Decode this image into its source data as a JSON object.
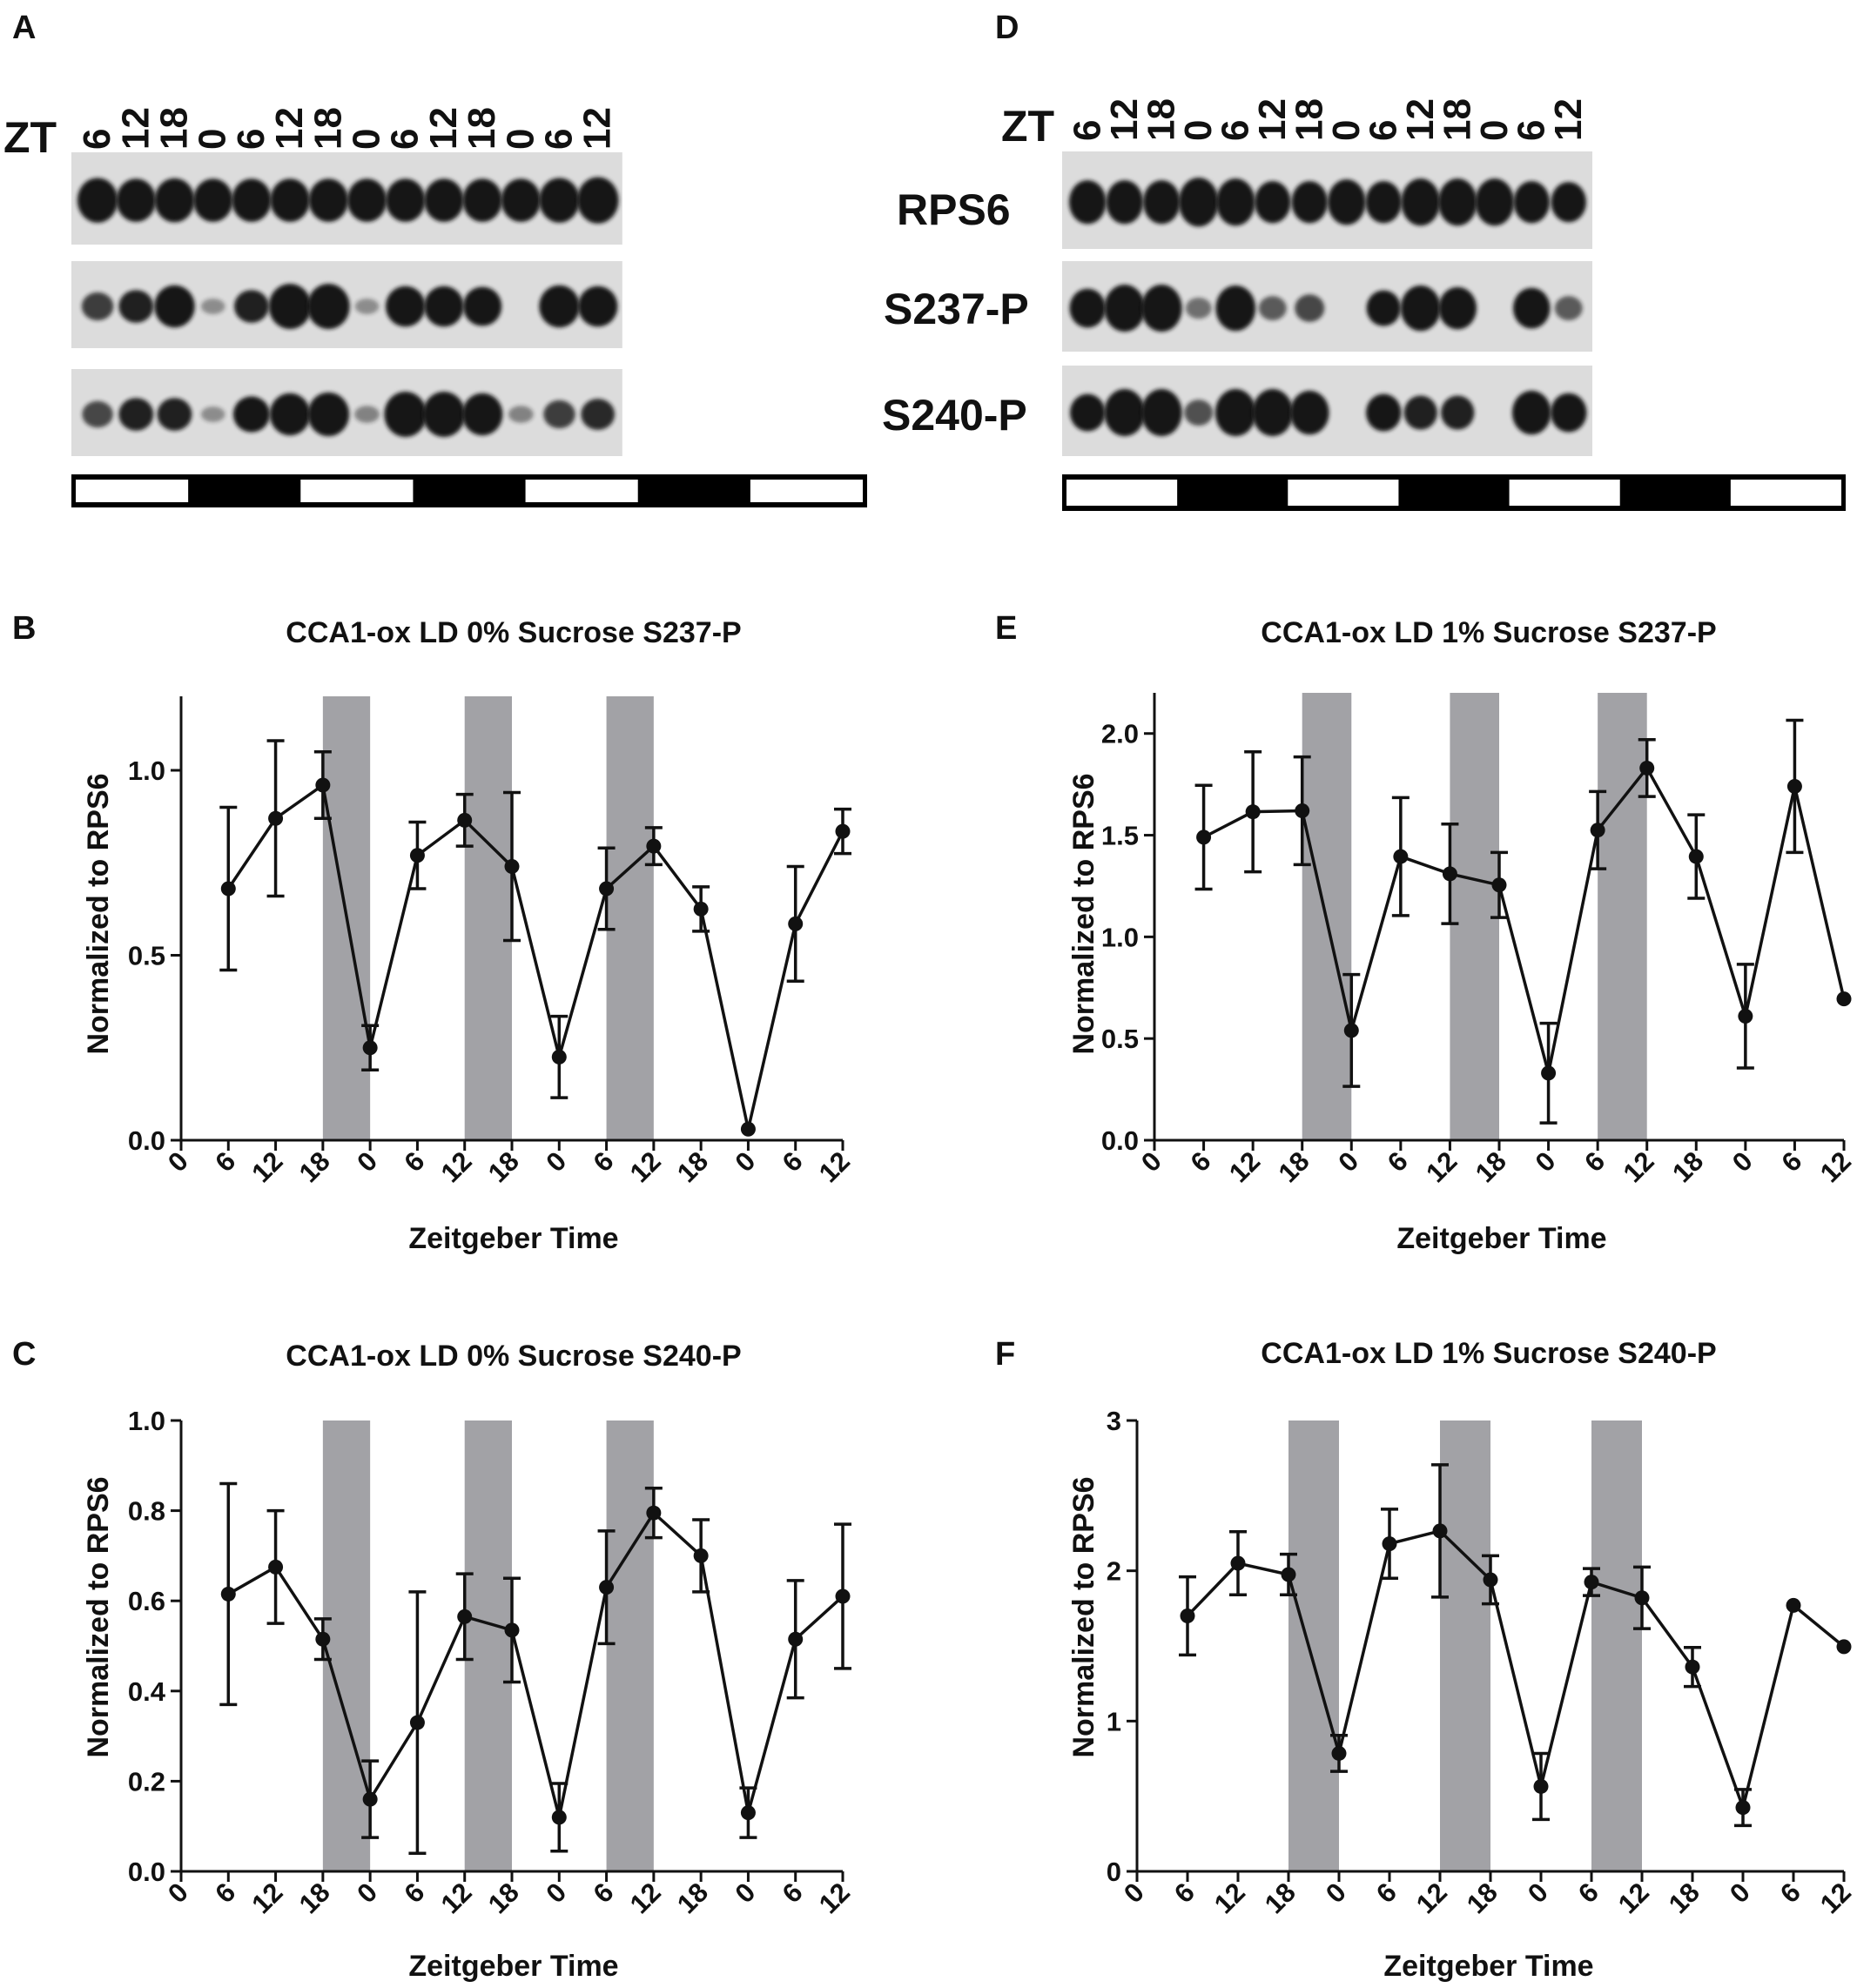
{
  "blots": [
    {
      "panel": "A",
      "zt_prefix": "ZT",
      "lanes": [
        "6",
        "12",
        "18",
        "0",
        "6",
        "12",
        "18",
        "0",
        "6",
        "12",
        "18",
        "0",
        "6",
        "12"
      ],
      "bands": [
        {
          "label": "RPS6",
          "intensity": [
            0.9,
            0.85,
            0.88,
            0.85,
            0.85,
            0.85,
            0.85,
            0.85,
            0.85,
            0.85,
            0.85,
            0.85,
            0.9,
            0.95
          ]
        },
        {
          "label": "S237-P",
          "intensity": [
            0.45,
            0.6,
            0.9,
            0.05,
            0.6,
            1.0,
            1.0,
            0.05,
            0.85,
            0.85,
            0.8,
            0.0,
            0.9,
            0.85
          ]
        },
        {
          "label": "S240-P",
          "intensity": [
            0.4,
            0.6,
            0.6,
            0.05,
            0.7,
            0.9,
            0.95,
            0.1,
            1.0,
            1.0,
            0.9,
            0.1,
            0.45,
            0.55
          ]
        }
      ],
      "light_dark": [
        "light",
        "dark",
        "light",
        "dark",
        "light",
        "dark",
        "light"
      ]
    },
    {
      "panel": "D",
      "zt_prefix": "ZT",
      "lanes": [
        "6",
        "12",
        "18",
        "0",
        "6",
        "12",
        "18",
        "0",
        "6",
        "12",
        "18",
        "0",
        "6",
        "12"
      ],
      "bands": [
        {
          "label": "RPS6",
          "intensity": [
            0.8,
            0.8,
            0.8,
            0.95,
            0.9,
            0.75,
            0.75,
            0.85,
            0.75,
            0.9,
            0.9,
            0.9,
            0.75,
            0.7
          ]
        },
        {
          "label": "S237-P",
          "intensity": [
            0.75,
            1.0,
            1.0,
            0.2,
            0.95,
            0.3,
            0.4,
            0.0,
            0.65,
            0.95,
            0.85,
            0.0,
            0.8,
            0.3
          ]
        },
        {
          "label": "S240-P",
          "intensity": [
            0.7,
            1.0,
            1.0,
            0.35,
            1.0,
            1.0,
            0.9,
            0.0,
            0.7,
            0.6,
            0.6,
            0.0,
            0.9,
            0.75
          ]
        }
      ],
      "light_dark": [
        "light",
        "dark",
        "light",
        "dark",
        "light",
        "dark",
        "light"
      ]
    }
  ],
  "chart_data": [
    {
      "panel": "B",
      "type": "line",
      "title": "CCA1-ox LD 0% Sucrose S237-P",
      "xlabel": "Zeitgeber Time",
      "ylabel": "Normalized to RPS6",
      "x_ticks": [
        "0",
        "6",
        "12",
        "18",
        "0",
        "6",
        "12",
        "18",
        "0",
        "6",
        "12",
        "18",
        "0",
        "6",
        "12"
      ],
      "ylim": [
        0,
        1.2
      ],
      "y_ticks": [
        "0.0",
        "0.5",
        "1.0"
      ],
      "y_tick_values": [
        0,
        0.5,
        1.0
      ],
      "shaded_x": [
        [
          3,
          4
        ],
        [
          6,
          7
        ],
        [
          9,
          10
        ]
      ],
      "points": [
        {
          "x": 1,
          "y": 0.68,
          "err": 0.22
        },
        {
          "x": 2,
          "y": 0.87,
          "err": 0.21
        },
        {
          "x": 3,
          "y": 0.96,
          "err": 0.09
        },
        {
          "x": 4,
          "y": 0.25,
          "err": 0.06
        },
        {
          "x": 5,
          "y": 0.77,
          "err": 0.09
        },
        {
          "x": 6,
          "y": 0.865,
          "err": 0.07
        },
        {
          "x": 7,
          "y": 0.74,
          "err": 0.2
        },
        {
          "x": 8,
          "y": 0.225,
          "err": 0.11
        },
        {
          "x": 9,
          "y": 0.68,
          "err": 0.11
        },
        {
          "x": 10,
          "y": 0.795,
          "err": 0.05
        },
        {
          "x": 11,
          "y": 0.625,
          "err": 0.06
        },
        {
          "x": 12,
          "y": 0.03,
          "err": 0.0
        },
        {
          "x": 13,
          "y": 0.585,
          "err": 0.155
        },
        {
          "x": 14,
          "y": 0.835,
          "err": 0.06
        }
      ]
    },
    {
      "panel": "C",
      "type": "line",
      "title": "CCA1-ox LD 0% Sucrose S240-P",
      "xlabel": "Zeitgeber Time",
      "ylabel": "Normalized to RPS6",
      "x_ticks": [
        "0",
        "6",
        "12",
        "18",
        "0",
        "6",
        "12",
        "18",
        "0",
        "6",
        "12",
        "18",
        "0",
        "6",
        "12"
      ],
      "ylim": [
        0,
        1.0
      ],
      "y_ticks": [
        "0.0",
        "0.2",
        "0.4",
        "0.6",
        "0.8",
        "1.0"
      ],
      "y_tick_values": [
        0,
        0.2,
        0.4,
        0.6,
        0.8,
        1.0
      ],
      "shaded_x": [
        [
          3,
          4
        ],
        [
          6,
          7
        ],
        [
          9,
          10
        ]
      ],
      "points": [
        {
          "x": 1,
          "y": 0.615,
          "err": 0.245
        },
        {
          "x": 2,
          "y": 0.675,
          "err": 0.125
        },
        {
          "x": 3,
          "y": 0.515,
          "err": 0.045
        },
        {
          "x": 4,
          "y": 0.16,
          "err": 0.085
        },
        {
          "x": 5,
          "y": 0.33,
          "err": 0.29
        },
        {
          "x": 6,
          "y": 0.565,
          "err": 0.095
        },
        {
          "x": 7,
          "y": 0.535,
          "err": 0.115
        },
        {
          "x": 8,
          "y": 0.12,
          "err": 0.075
        },
        {
          "x": 9,
          "y": 0.63,
          "err": 0.125
        },
        {
          "x": 10,
          "y": 0.795,
          "err": 0.055
        },
        {
          "x": 11,
          "y": 0.7,
          "err": 0.08
        },
        {
          "x": 12,
          "y": 0.13,
          "err": 0.055
        },
        {
          "x": 13,
          "y": 0.515,
          "err": 0.13
        },
        {
          "x": 14,
          "y": 0.61,
          "err": 0.16
        }
      ]
    },
    {
      "panel": "E",
      "type": "line",
      "title": "CCA1-ox LD 1% Sucrose S237-P",
      "xlabel": "Zeitgeber Time",
      "ylabel": "Normalized to RPS6",
      "x_ticks": [
        "0",
        "6",
        "12",
        "18",
        "0",
        "6",
        "12",
        "18",
        "0",
        "6",
        "12",
        "18",
        "0",
        "6",
        "12"
      ],
      "ylim": [
        0,
        2.2
      ],
      "y_ticks": [
        "0.0",
        "0.5",
        "1.0",
        "1.5",
        "2.0"
      ],
      "y_tick_values": [
        0,
        0.5,
        1.0,
        1.5,
        2.0
      ],
      "shaded_x": [
        [
          3,
          4
        ],
        [
          6,
          7
        ],
        [
          9,
          10
        ]
      ],
      "points": [
        {
          "x": 1,
          "y": 1.49,
          "err": 0.255
        },
        {
          "x": 2,
          "y": 1.615,
          "err": 0.295
        },
        {
          "x": 3,
          "y": 1.62,
          "err": 0.265
        },
        {
          "x": 4,
          "y": 0.54,
          "err": 0.275
        },
        {
          "x": 5,
          "y": 1.395,
          "err": 0.29
        },
        {
          "x": 6,
          "y": 1.31,
          "err": 0.245
        },
        {
          "x": 7,
          "y": 1.255,
          "err": 0.16
        },
        {
          "x": 8,
          "y": 0.33,
          "err": 0.245
        },
        {
          "x": 9,
          "y": 1.525,
          "err": 0.19
        },
        {
          "x": 10,
          "y": 1.83,
          "err": 0.14
        },
        {
          "x": 11,
          "y": 1.395,
          "err": 0.205
        },
        {
          "x": 12,
          "y": 0.61,
          "err": 0.255
        },
        {
          "x": 13,
          "y": 1.74,
          "err": 0.325
        },
        {
          "x": 14,
          "y": 0.695,
          "err": 0.0
        }
      ]
    },
    {
      "panel": "F",
      "type": "line",
      "title": "CCA1-ox LD 1% Sucrose S240-P",
      "xlabel": "Zeitgeber Time",
      "ylabel": "Normalized to RPS6",
      "x_ticks": [
        "0",
        "6",
        "12",
        "18",
        "0",
        "6",
        "12",
        "18",
        "0",
        "6",
        "12",
        "18",
        "0",
        "6",
        "12"
      ],
      "ylim": [
        0,
        3
      ],
      "y_ticks": [
        "0",
        "1",
        "2",
        "3"
      ],
      "y_tick_values": [
        0,
        1,
        2,
        3
      ],
      "shaded_x": [
        [
          3,
          4
        ],
        [
          6,
          7
        ],
        [
          9,
          10
        ]
      ],
      "points": [
        {
          "x": 1,
          "y": 1.7,
          "err": 0.26
        },
        {
          "x": 2,
          "y": 2.05,
          "err": 0.21
        },
        {
          "x": 3,
          "y": 1.975,
          "err": 0.135
        },
        {
          "x": 4,
          "y": 0.785,
          "err": 0.12
        },
        {
          "x": 5,
          "y": 2.18,
          "err": 0.23
        },
        {
          "x": 6,
          "y": 2.265,
          "err": 0.44
        },
        {
          "x": 7,
          "y": 1.94,
          "err": 0.16
        },
        {
          "x": 8,
          "y": 0.565,
          "err": 0.22
        },
        {
          "x": 9,
          "y": 1.925,
          "err": 0.09
        },
        {
          "x": 10,
          "y": 1.82,
          "err": 0.205
        },
        {
          "x": 11,
          "y": 1.36,
          "err": 0.13
        },
        {
          "x": 12,
          "y": 0.425,
          "err": 0.12
        },
        {
          "x": 13,
          "y": 1.77,
          "err": 0.0
        },
        {
          "x": 14,
          "y": 1.495,
          "err": 0.0
        }
      ]
    }
  ],
  "colors": {
    "line": "#111111",
    "shade": "#a2a2a6",
    "blot_bg": "#dcdcdc",
    "band": "#141414"
  }
}
